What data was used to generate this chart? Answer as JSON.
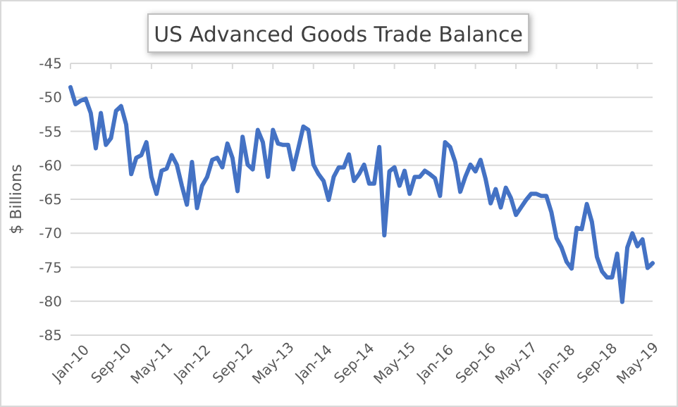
{
  "chart_data": {
    "type": "line",
    "title": "US Advanced Goods Trade Balance",
    "ylabel": "$ Billions",
    "categories": [
      "Jan-10",
      null,
      null,
      null,
      null,
      null,
      null,
      null,
      "Sep-10",
      null,
      null,
      null,
      null,
      null,
      null,
      null,
      "May-11",
      null,
      null,
      null,
      null,
      null,
      null,
      null,
      "Jan-12",
      null,
      null,
      null,
      null,
      null,
      null,
      null,
      "Sep-12",
      null,
      null,
      null,
      null,
      null,
      null,
      null,
      "May-13",
      null,
      null,
      null,
      null,
      null,
      null,
      null,
      "Jan-14",
      null,
      null,
      null,
      null,
      null,
      null,
      null,
      "Sep-14",
      null,
      null,
      null,
      null,
      null,
      null,
      null,
      "May-15",
      null,
      null,
      null,
      null,
      null,
      null,
      null,
      "Jan-16",
      null,
      null,
      null,
      null,
      null,
      null,
      null,
      "Sep-16",
      null,
      null,
      null,
      null,
      null,
      null,
      null,
      "May-17",
      null,
      null,
      null,
      null,
      null,
      null,
      null,
      "Jan-18",
      null,
      null,
      null,
      null,
      null,
      null,
      null,
      "Sep-18",
      null,
      null,
      null,
      null,
      null,
      null,
      null,
      "May-19",
      null,
      null,
      null
    ],
    "series": [
      {
        "color": "#4472c4",
        "values": [
          -48.5,
          -51,
          -50.5,
          -50.2,
          -52.3,
          -57.5,
          -52.3,
          -57,
          -56,
          -52,
          -51.3,
          -54,
          -61.3,
          -58.9,
          -58.5,
          -56.6,
          -61.7,
          -64.2,
          -60.8,
          -60.5,
          -58.5,
          -59.9,
          -63,
          -65.8,
          -59.5,
          -66.3,
          -63,
          -61.7,
          -59.2,
          -58.9,
          -60.3,
          -56.8,
          -58.9,
          -63.8,
          -55.8,
          -59.9,
          -60.6,
          -54.8,
          -56.6,
          -61.7,
          -54.8,
          -56.8,
          -57,
          -57,
          -60.6,
          -57.5,
          -54.3,
          -54.8,
          -59.9,
          -61.3,
          -62.3,
          -65.1,
          -61.7,
          -60.3,
          -60.3,
          -58.4,
          -62.3,
          -61.3,
          -59.9,
          -62.7,
          -62.7,
          -57.3,
          -70.3,
          -60.9,
          -60.3,
          -63,
          -60.8,
          -64.2,
          -61.7,
          -61.7,
          -60.8,
          -61.3,
          -61.9,
          -64.5,
          -56.6,
          -57.3,
          -59.5,
          -63.9,
          -61.7,
          -59.9,
          -60.9,
          -59.2,
          -62,
          -65.6,
          -63.5,
          -66.2,
          -63.3,
          -64.8,
          -67.3,
          -66.2,
          -65.1,
          -64.2,
          -64.2,
          -64.5,
          -64.5,
          -66.9,
          -70.7,
          -72.1,
          -74.2,
          -75.2,
          -69.2,
          -69.4,
          -65.7,
          -68.3,
          -73.5,
          -75.6,
          -76.5,
          -76.5,
          -73,
          -80.1,
          -72.1,
          -70,
          -71.9,
          -70.9,
          -75.1,
          -74.4
        ]
      }
    ],
    "ylim": [
      -85,
      -45
    ],
    "yticks": [
      -85,
      -80,
      -75,
      -70,
      -65,
      -60,
      -55,
      -50,
      -45
    ],
    "grid": "y",
    "marker": "none",
    "line_style": "solid"
  }
}
